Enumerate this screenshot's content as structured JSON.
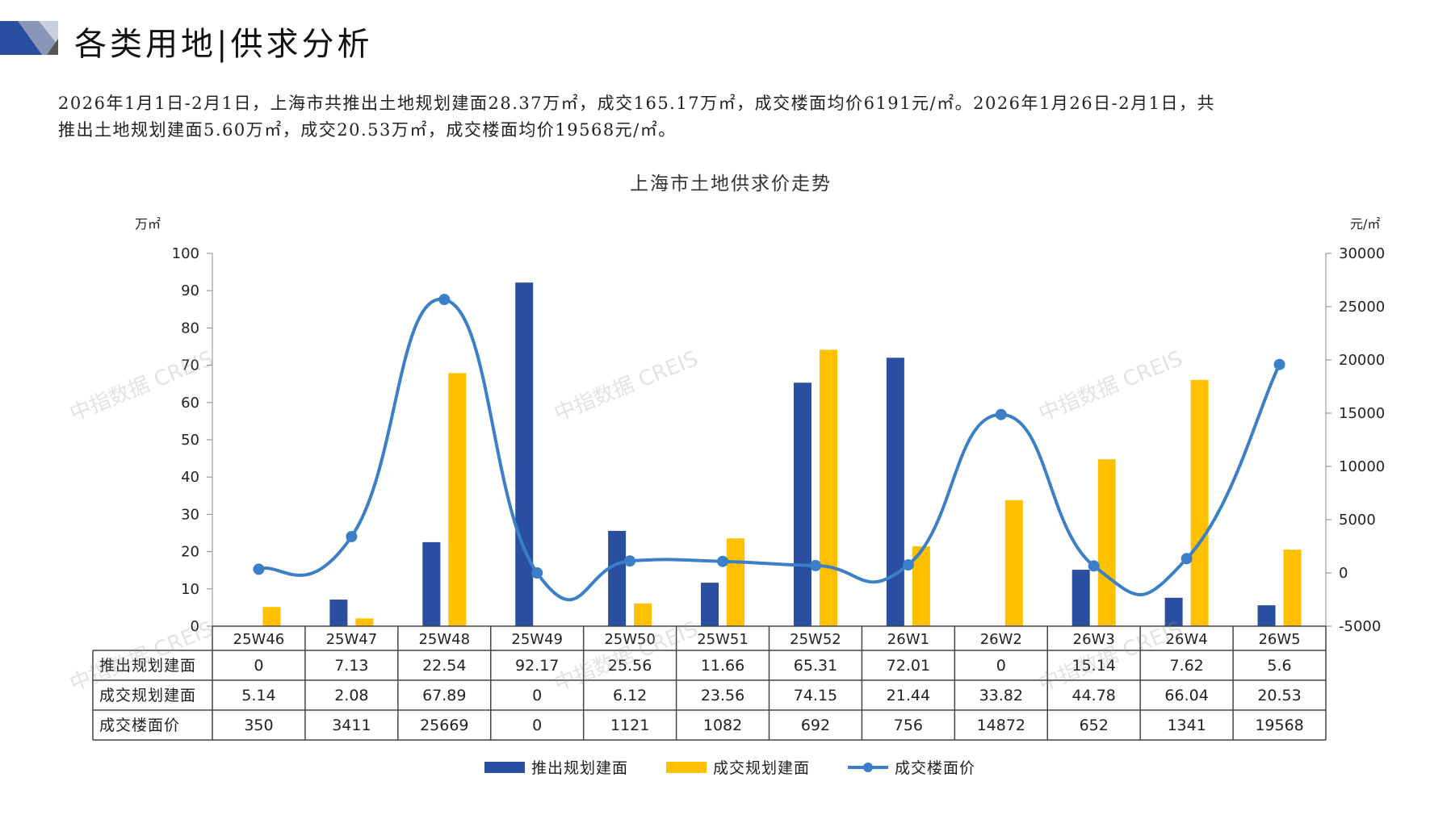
{
  "header": {
    "title": "各类用地|供求分析"
  },
  "summary": {
    "line1": "2026年1月1日-2月1日，上海市共推出土地规划建面28.37万㎡，成交165.17万㎡，成交楼面均价6191元/㎡。2026年1月26日-2月1日，共",
    "line2": "推出土地规划建面5.60万㎡，成交20.53万㎡，成交楼面均价19568元/㎡。"
  },
  "watermark": "中指数据 CREIS",
  "colors": {
    "supply": "#2b4fa0",
    "deal": "#ffc000",
    "price": "#3a7fc8",
    "axis": "#888888"
  },
  "chart_data": {
    "type": "bar",
    "title": "上海市土地供求价走势",
    "ylabel_left": "万㎡",
    "ylabel_right": "元/㎡",
    "ylim_left": [
      0,
      100
    ],
    "ylim_right": [
      -5000,
      30000
    ],
    "left_ticks": [
      0,
      10,
      20,
      30,
      40,
      50,
      60,
      70,
      80,
      90,
      100
    ],
    "right_ticks": [
      -5000,
      0,
      5000,
      10000,
      15000,
      20000,
      25000,
      30000
    ],
    "categories": [
      "25W46",
      "25W47",
      "25W48",
      "25W49",
      "25W50",
      "25W51",
      "25W52",
      "26W1",
      "26W2",
      "26W3",
      "26W4",
      "26W5"
    ],
    "series": [
      {
        "name": "推出规划建面",
        "type": "bar",
        "axis": "left",
        "values": [
          0,
          7.13,
          22.54,
          92.17,
          25.56,
          11.66,
          65.31,
          72.01,
          0,
          15.14,
          7.62,
          5.6
        ],
        "labels": [
          "0",
          "7.13",
          "22.54",
          "92.17",
          "25.56",
          "11.66",
          "65.31",
          "72.01",
          "0",
          "15.14",
          "7.62",
          "5.6"
        ]
      },
      {
        "name": "成交规划建面",
        "type": "bar",
        "axis": "left",
        "values": [
          5.14,
          2.08,
          67.89,
          0,
          6.12,
          23.56,
          74.15,
          21.44,
          33.82,
          44.78,
          66.04,
          20.53
        ],
        "labels": [
          "5.14",
          "2.08",
          "67.89",
          "0",
          "6.12",
          "23.56",
          "74.15",
          "21.44",
          "33.82",
          "44.78",
          "66.04",
          "20.53"
        ]
      },
      {
        "name": "成交楼面价",
        "type": "line",
        "axis": "right",
        "values": [
          350,
          3411,
          25669,
          0,
          1121,
          1082,
          692,
          756,
          14872,
          652,
          1341,
          19568
        ],
        "labels": [
          "350",
          "3411",
          "25669",
          "0",
          "1121",
          "1082",
          "692",
          "756",
          "14872",
          "652",
          "1341",
          "19568"
        ]
      }
    ],
    "legend_position": "bottom"
  }
}
